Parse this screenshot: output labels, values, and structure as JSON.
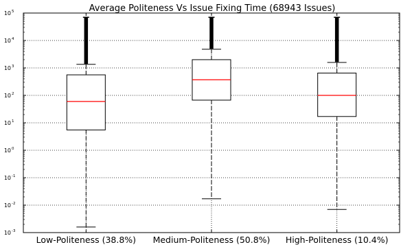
{
  "chart_data": {
    "type": "boxplot",
    "title": "Average Politeness  Vs Issue Fixing Time (68943 Issues)",
    "xlabel": "",
    "ylabel": "",
    "yscale": "log",
    "ylim": [
      0.001,
      100000
    ],
    "yticks": [
      {
        "base": "10",
        "exp": "-3",
        "value": 0.001
      },
      {
        "base": "10",
        "exp": "-2",
        "value": 0.01
      },
      {
        "base": "10",
        "exp": "-1",
        "value": 0.1
      },
      {
        "base": "10",
        "exp": "0",
        "value": 1
      },
      {
        "base": "10",
        "exp": "1",
        "value": 10
      },
      {
        "base": "10",
        "exp": "2",
        "value": 100
      },
      {
        "base": "10",
        "exp": "3",
        "value": 1000
      },
      {
        "base": "10",
        "exp": "4",
        "value": 10000
      },
      {
        "base": "10",
        "exp": "5",
        "value": 100000
      }
    ],
    "grid": true,
    "categories": [
      "Low-Politeness (38.8%)",
      "Medium-Politeness (50.8%)",
      "High-Politeness (10.4%)"
    ],
    "boxes": [
      {
        "whisker_low": 0.0016,
        "q1": 5.5,
        "median": 60,
        "q3": 560,
        "whisker_high": 1350,
        "outliers_min": 1400,
        "outliers_max": 70000
      },
      {
        "whisker_low": 0.017,
        "q1": 67,
        "median": 370,
        "q3": 2000,
        "whisker_high": 4800,
        "outliers_min": 5000,
        "outliers_max": 70000
      },
      {
        "whisker_low": 0.007,
        "q1": 17,
        "median": 100,
        "q3": 650,
        "whisker_high": 1580,
        "outliers_min": 1650,
        "outliers_max": 70000
      }
    ],
    "colors": {
      "box": "#000000",
      "median": "#ff0000",
      "grid": "#000000",
      "background": "#ffffff"
    }
  }
}
